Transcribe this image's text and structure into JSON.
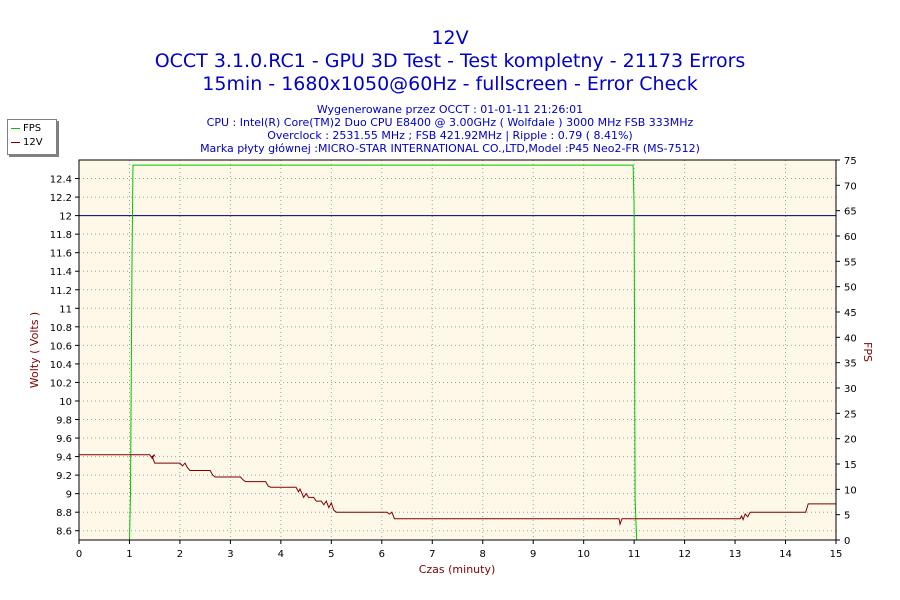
{
  "chart_data": {
    "type": "line",
    "title": "12V",
    "subtitle_lines": [
      "OCCT 3.1.0.RC1 - GPU 3D Test - Test kompletny - 21173 Errors",
      "15min - 1680x1050@60Hz - fullscreen - Error Check"
    ],
    "info_lines": [
      "Wygenerowane przez OCCT : 01-01-11 21:26:01",
      "CPU : Intel(R) Core(TM)2 Duo CPU E8400 @ 3.00GHz ( Wolfdale ) 3000 MHz FSB 333MHz",
      "Overclock : 2531.55 MHz ; FSB 421.92MHz | Ripple : 0.79 ( 8.41%)",
      "Marka płyty głównej :MICRO-STAR INTERNATIONAL CO.,LTD,Model :P45 Neo2-FR (MS-7512)"
    ],
    "xlabel": "Czas (minuty)",
    "ylabel_left": "Wolty ( Volts )",
    "ylabel_right": "FPS",
    "xlim": [
      0,
      15
    ],
    "ylim_left": [
      8.5,
      12.6
    ],
    "ylim_right": [
      0,
      75
    ],
    "x_ticks": [
      "0",
      "1",
      "2",
      "3",
      "4",
      "5",
      "6",
      "7",
      "8",
      "9",
      "10",
      "11",
      "12",
      "13",
      "14",
      "15"
    ],
    "y_left_ticks": [
      "8.6",
      "8.8",
      "9",
      "9.2",
      "9.4",
      "9.6",
      "9.8",
      "10",
      "10.2",
      "10.4",
      "10.6",
      "10.8",
      "11",
      "11.2",
      "11.4",
      "11.6",
      "11.8",
      "12",
      "12.2",
      "12.4"
    ],
    "y_right_ticks": [
      "0",
      "5",
      "10",
      "15",
      "20",
      "25",
      "30",
      "35",
      "40",
      "45",
      "50",
      "55",
      "60",
      "65",
      "70",
      "75"
    ],
    "grid": true,
    "legend_position": "top-left",
    "series": [
      {
        "name": "FPS",
        "axis": "right",
        "color": "#00c800",
        "points": [
          [
            0,
            0
          ],
          [
            1.0,
            0
          ],
          [
            1.02,
            9
          ],
          [
            1.05,
            55
          ],
          [
            1.07,
            74
          ],
          [
            10.98,
            74
          ],
          [
            11.0,
            66
          ],
          [
            11.02,
            8
          ],
          [
            11.05,
            0
          ],
          [
            15,
            0
          ]
        ]
      },
      {
        "name": "12V",
        "axis": "left",
        "color": "#800000",
        "points": [
          [
            0,
            9.42
          ],
          [
            1.4,
            9.42
          ],
          [
            1.45,
            9.38
          ],
          [
            1.5,
            9.42
          ],
          [
            1.45,
            9.4
          ],
          [
            1.5,
            9.33
          ],
          [
            2.0,
            9.33
          ],
          [
            2.05,
            9.3
          ],
          [
            2.1,
            9.33
          ],
          [
            2.15,
            9.28
          ],
          [
            2.2,
            9.25
          ],
          [
            2.6,
            9.25
          ],
          [
            2.65,
            9.2
          ],
          [
            2.7,
            9.18
          ],
          [
            3.2,
            9.18
          ],
          [
            3.25,
            9.15
          ],
          [
            3.3,
            9.13
          ],
          [
            3.7,
            9.13
          ],
          [
            3.75,
            9.08
          ],
          [
            3.8,
            9.07
          ],
          [
            4.3,
            9.07
          ],
          [
            4.35,
            9.02
          ],
          [
            4.38,
            9.05
          ],
          [
            4.42,
            9.0
          ],
          [
            4.45,
            8.96
          ],
          [
            4.5,
            9.0
          ],
          [
            4.55,
            8.96
          ],
          [
            4.65,
            8.96
          ],
          [
            4.7,
            8.92
          ],
          [
            4.8,
            8.92
          ],
          [
            4.85,
            8.88
          ],
          [
            4.9,
            8.92
          ],
          [
            4.95,
            8.85
          ],
          [
            5.0,
            8.9
          ],
          [
            5.05,
            8.82
          ],
          [
            5.1,
            8.8
          ],
          [
            6.1,
            8.8
          ],
          [
            6.15,
            8.78
          ],
          [
            6.2,
            8.8
          ],
          [
            6.25,
            8.73
          ],
          [
            10.7,
            8.73
          ],
          [
            10.72,
            8.67
          ],
          [
            10.76,
            8.73
          ],
          [
            13.1,
            8.73
          ],
          [
            13.13,
            8.76
          ],
          [
            13.16,
            8.72
          ],
          [
            13.2,
            8.78
          ],
          [
            13.25,
            8.75
          ],
          [
            13.3,
            8.8
          ],
          [
            14.4,
            8.8
          ],
          [
            14.45,
            8.89
          ],
          [
            15,
            8.89
          ]
        ]
      }
    ],
    "reference_line": {
      "value": 12,
      "axis": "left",
      "color": "#000080"
    }
  }
}
